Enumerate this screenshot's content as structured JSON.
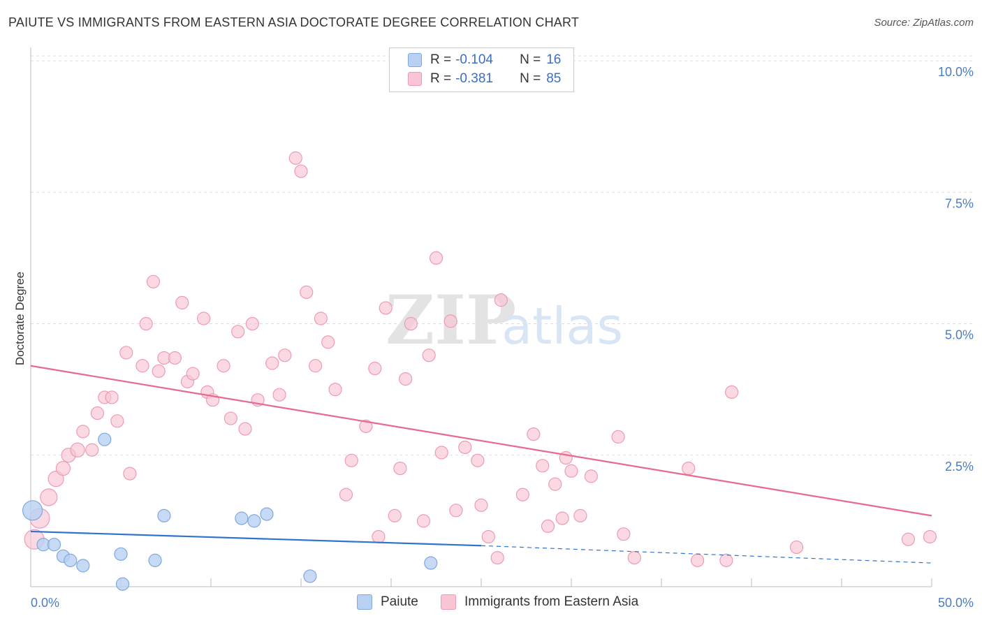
{
  "title": "PAIUTE VS IMMIGRANTS FROM EASTERN ASIA DOCTORATE DEGREE CORRELATION CHART",
  "source": "Source: ZipAtlas.com",
  "watermark": {
    "zip": "ZIP",
    "atlas": "atlas"
  },
  "colors": {
    "paiute_fill": "#b8d1f3",
    "paiute_stroke": "#7fa8dd",
    "paiute_line": "#2f72cf",
    "immig_fill": "#f9c5d4",
    "immig_stroke": "#ee9ab3",
    "immig_line": "#e8698f",
    "tick_text": "#4a7cc4",
    "grid": "#dddddd"
  },
  "legend": {
    "rows": [
      {
        "r_label": "R = ",
        "r_value": "-0.104",
        "n_label": "N = ",
        "n_value": "16"
      },
      {
        "r_label": "R = ",
        "r_value": "-0.381",
        "n_label": "N = ",
        "n_value": "85"
      }
    ]
  },
  "bottom_legend": {
    "paiute": "Paiute",
    "immig": "Immigrants from Eastern Asia"
  },
  "chart_data": {
    "type": "scatter",
    "title": "PAIUTE VS IMMIGRANTS FROM EASTERN ASIA DOCTORATE DEGREE CORRELATION CHART",
    "xlabel": "",
    "ylabel": "Doctorate Degree",
    "xlim": [
      0,
      50
    ],
    "ylim": [
      0,
      10.2
    ],
    "x_tick_labels": [
      "0.0%",
      "50.0%"
    ],
    "y_ticks": [
      2.5,
      5.0,
      7.5,
      10.0
    ],
    "y_tick_labels": [
      "2.5%",
      "5.0%",
      "7.5%",
      "10.0%"
    ],
    "grid": true,
    "series": [
      {
        "name": "Paiute",
        "points": [
          [
            0.1,
            1.45,
            14
          ],
          [
            0.7,
            0.8,
            9
          ],
          [
            1.3,
            0.8,
            9
          ],
          [
            1.8,
            0.58,
            9
          ],
          [
            2.2,
            0.5,
            9
          ],
          [
            2.9,
            0.4,
            9
          ],
          [
            4.1,
            2.8,
            9
          ],
          [
            5.0,
            0.62,
            9
          ],
          [
            5.1,
            0.05,
            9
          ],
          [
            6.9,
            0.5,
            9
          ],
          [
            7.4,
            1.35,
            9
          ],
          [
            11.7,
            1.3,
            9
          ],
          [
            12.4,
            1.25,
            9
          ],
          [
            13.1,
            1.38,
            9
          ],
          [
            15.5,
            0.2,
            9
          ],
          [
            22.2,
            0.45,
            9
          ]
        ],
        "trend": {
          "x0": 0,
          "y0": 1.05,
          "x1": 25,
          "y1": 0.78,
          "dash_x1": 50,
          "dash_y1": 0.45
        }
      },
      {
        "name": "Immigrants from Eastern Asia",
        "points": [
          [
            0.2,
            0.9,
            14
          ],
          [
            0.5,
            1.3,
            14
          ],
          [
            1.0,
            1.7,
            12
          ],
          [
            1.4,
            2.05,
            11
          ],
          [
            1.8,
            2.25,
            10
          ],
          [
            2.1,
            2.5,
            10
          ],
          [
            2.6,
            2.6,
            10
          ],
          [
            2.9,
            2.95,
            9
          ],
          [
            3.4,
            2.6,
            9
          ],
          [
            3.7,
            3.3,
            9
          ],
          [
            4.1,
            3.6,
            9
          ],
          [
            4.5,
            3.6,
            9
          ],
          [
            4.8,
            3.15,
            9
          ],
          [
            5.3,
            4.45,
            9
          ],
          [
            5.5,
            2.15,
            9
          ],
          [
            6.2,
            4.2,
            9
          ],
          [
            6.4,
            5.0,
            9
          ],
          [
            6.8,
            5.8,
            9
          ],
          [
            7.1,
            4.1,
            9
          ],
          [
            7.4,
            4.35,
            9
          ],
          [
            8.0,
            4.35,
            9
          ],
          [
            8.4,
            5.4,
            9
          ],
          [
            8.7,
            3.9,
            9
          ],
          [
            9.0,
            4.05,
            9
          ],
          [
            9.6,
            5.1,
            9
          ],
          [
            9.8,
            3.7,
            9
          ],
          [
            10.1,
            3.55,
            9
          ],
          [
            10.7,
            4.2,
            9
          ],
          [
            11.1,
            3.2,
            9
          ],
          [
            11.5,
            4.85,
            9
          ],
          [
            11.9,
            3.0,
            9
          ],
          [
            12.3,
            5.0,
            9
          ],
          [
            12.6,
            3.55,
            9
          ],
          [
            13.4,
            4.25,
            9
          ],
          [
            13.8,
            3.65,
            9
          ],
          [
            14.1,
            4.4,
            9
          ],
          [
            14.7,
            8.15,
            9
          ],
          [
            15.0,
            7.9,
            9
          ],
          [
            15.3,
            5.6,
            9
          ],
          [
            15.8,
            4.2,
            9
          ],
          [
            16.1,
            5.1,
            9
          ],
          [
            16.5,
            4.65,
            9
          ],
          [
            16.9,
            3.75,
            9
          ],
          [
            17.5,
            1.75,
            9
          ],
          [
            17.8,
            2.4,
            9
          ],
          [
            18.6,
            3.05,
            9
          ],
          [
            19.1,
            4.15,
            9
          ],
          [
            19.3,
            0.95,
            9
          ],
          [
            19.7,
            5.3,
            9
          ],
          [
            20.2,
            1.35,
            9
          ],
          [
            20.5,
            2.25,
            9
          ],
          [
            20.8,
            3.95,
            9
          ],
          [
            21.1,
            5.0,
            9
          ],
          [
            21.8,
            1.25,
            9
          ],
          [
            22.1,
            4.4,
            9
          ],
          [
            22.5,
            6.25,
            9
          ],
          [
            22.8,
            2.55,
            9
          ],
          [
            23.3,
            5.05,
            9
          ],
          [
            23.6,
            1.45,
            9
          ],
          [
            24.1,
            2.65,
            9
          ],
          [
            24.8,
            2.4,
            9
          ],
          [
            25.0,
            1.55,
            9
          ],
          [
            25.4,
            0.95,
            9
          ],
          [
            25.9,
            0.55,
            9
          ],
          [
            26.1,
            5.45,
            9
          ],
          [
            27.3,
            1.75,
            9
          ],
          [
            27.9,
            2.9,
            9
          ],
          [
            28.4,
            2.3,
            9
          ],
          [
            28.7,
            1.15,
            9
          ],
          [
            29.1,
            1.95,
            9
          ],
          [
            29.5,
            1.3,
            9
          ],
          [
            29.7,
            2.45,
            9
          ],
          [
            30.0,
            2.2,
            9
          ],
          [
            30.5,
            1.35,
            9
          ],
          [
            31.1,
            2.1,
            9
          ],
          [
            32.6,
            2.85,
            9
          ],
          [
            32.9,
            1.0,
            9
          ],
          [
            33.5,
            0.55,
            9
          ],
          [
            36.5,
            2.25,
            9
          ],
          [
            38.6,
            0.5,
            9
          ],
          [
            38.9,
            3.7,
            9
          ],
          [
            42.5,
            0.75,
            9
          ],
          [
            48.7,
            0.9,
            9
          ],
          [
            49.9,
            0.95,
            9
          ],
          [
            37.0,
            0.5,
            9
          ]
        ],
        "trend": {
          "x0": 0,
          "y0": 4.2,
          "x1": 50,
          "y1": 1.35
        }
      }
    ]
  }
}
